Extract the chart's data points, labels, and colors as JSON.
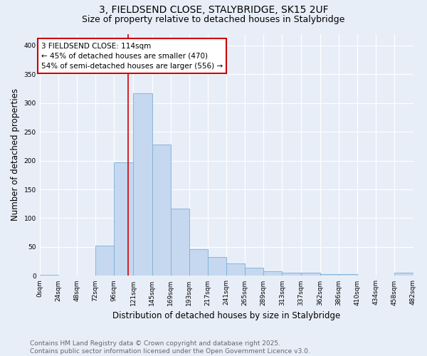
{
  "title_line1": "3, FIELDSEND CLOSE, STALYBRIDGE, SK15 2UF",
  "title_line2": "Size of property relative to detached houses in Stalybridge",
  "xlabel": "Distribution of detached houses by size in Stalybridge",
  "ylabel": "Number of detached properties",
  "bar_edges": [
    0,
    24,
    48,
    72,
    96,
    121,
    145,
    169,
    193,
    217,
    241,
    265,
    289,
    313,
    337,
    362,
    386,
    410,
    434,
    458,
    482
  ],
  "bar_heights": [
    2,
    0,
    0,
    52,
    197,
    317,
    228,
    117,
    46,
    33,
    21,
    14,
    8,
    5,
    5,
    3,
    3,
    0,
    1,
    5
  ],
  "bar_color": "#c5d8f0",
  "bar_edge_color": "#7bafd4",
  "property_line_x": 114,
  "annotation_text": "3 FIELDSEND CLOSE: 114sqm\n← 45% of detached houses are smaller (470)\n54% of semi-detached houses are larger (556) →",
  "annotation_box_color": "#ffffff",
  "annotation_box_edge_color": "#cc0000",
  "vline_color": "#cc0000",
  "ylim": [
    0,
    420
  ],
  "xlim": [
    0,
    482
  ],
  "footnote_line1": "Contains HM Land Registry data © Crown copyright and database right 2025.",
  "footnote_line2": "Contains public sector information licensed under the Open Government Licence v3.0.",
  "tick_labels": [
    "0sqm",
    "24sqm",
    "48sqm",
    "72sqm",
    "96sqm",
    "121sqm",
    "145sqm",
    "169sqm",
    "193sqm",
    "217sqm",
    "241sqm",
    "265sqm",
    "289sqm",
    "313sqm",
    "337sqm",
    "362sqm",
    "386sqm",
    "410sqm",
    "434sqm",
    "458sqm",
    "482sqm"
  ],
  "background_color": "#e8eef8",
  "grid_color": "#ffffff",
  "title_fontsize": 10,
  "subtitle_fontsize": 9,
  "axis_label_fontsize": 8.5,
  "tick_fontsize": 6.5,
  "annotation_fontsize": 7.5,
  "footnote_fontsize": 6.5,
  "yticks": [
    0,
    50,
    100,
    150,
    200,
    250,
    300,
    350,
    400
  ]
}
